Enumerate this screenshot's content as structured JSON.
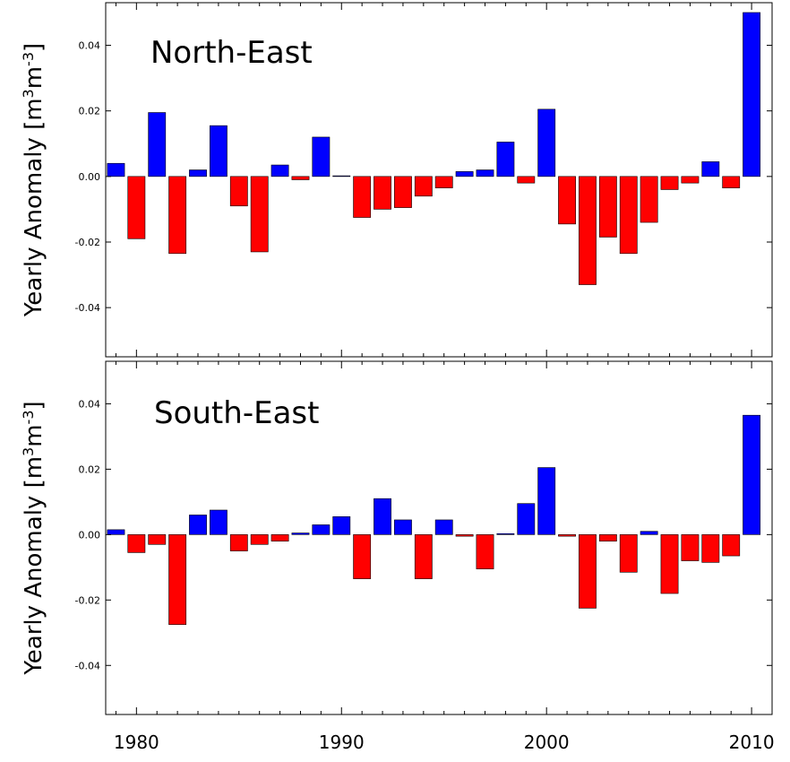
{
  "chart_data": [
    {
      "type": "bar",
      "title": "North-East",
      "ylabel": "Yearly  Anomaly [m3m-3]",
      "ylabel_parts": {
        "main": "Yearly  Anomaly [m",
        "sup1": "3",
        "mid": "m",
        "sup2": "-3",
        "end": "]"
      },
      "ylim": [
        -0.055,
        0.053
      ],
      "yticks": [
        -0.04,
        -0.02,
        0.0,
        0.02,
        0.04
      ],
      "ytick_labels": [
        "-0.04",
        "-0.02",
        "0.00",
        "0.02",
        "0.04"
      ],
      "grid": false,
      "positive_color": "#0000ff",
      "negative_color": "#ff0000",
      "x": [
        1979,
        1980,
        1981,
        1982,
        1983,
        1984,
        1985,
        1986,
        1987,
        1988,
        1989,
        1990,
        1991,
        1992,
        1993,
        1994,
        1995,
        1996,
        1997,
        1998,
        1999,
        2000,
        2001,
        2002,
        2003,
        2004,
        2005,
        2006,
        2007,
        2008,
        2009,
        2010
      ],
      "values": [
        0.004,
        -0.019,
        0.0195,
        -0.0235,
        0.002,
        0.0155,
        -0.009,
        -0.023,
        0.0035,
        -0.001,
        0.012,
        0.0002,
        -0.0125,
        -0.01,
        -0.0095,
        -0.006,
        -0.0035,
        0.0015,
        0.002,
        0.0105,
        -0.002,
        0.0205,
        -0.0145,
        -0.033,
        -0.0185,
        -0.0235,
        -0.014,
        -0.004,
        -0.002,
        0.0045,
        -0.0035,
        0.05
      ]
    },
    {
      "type": "bar",
      "title": "South-East",
      "ylabel": "Yearly  Anomaly [m3m-3]",
      "ylabel_parts": {
        "main": "Yearly  Anomaly [m",
        "sup1": "3",
        "mid": "m",
        "sup2": "-3",
        "end": "]"
      },
      "ylim": [
        -0.055,
        0.053
      ],
      "yticks": [
        -0.04,
        -0.02,
        0.0,
        0.02,
        0.04
      ],
      "ytick_labels": [
        "-0.04",
        "-0.02",
        "0.00",
        "0.02",
        "0.04"
      ],
      "grid": false,
      "positive_color": "#0000ff",
      "negative_color": "#ff0000",
      "x": [
        1979,
        1980,
        1981,
        1982,
        1983,
        1984,
        1985,
        1986,
        1987,
        1988,
        1989,
        1990,
        1991,
        1992,
        1993,
        1994,
        1995,
        1996,
        1997,
        1998,
        1999,
        2000,
        2001,
        2002,
        2003,
        2004,
        2005,
        2006,
        2007,
        2008,
        2009,
        2010
      ],
      "values": [
        0.0015,
        -0.0055,
        -0.003,
        -0.0275,
        0.006,
        0.0075,
        -0.005,
        -0.003,
        -0.002,
        0.0005,
        0.003,
        0.0055,
        -0.0135,
        0.011,
        0.0045,
        -0.0135,
        0.0045,
        -0.0005,
        -0.0105,
        0.0003,
        0.0095,
        0.0205,
        -0.0005,
        -0.0225,
        -0.002,
        -0.0115,
        0.001,
        -0.018,
        -0.008,
        -0.0085,
        -0.0065,
        0.0365
      ]
    }
  ],
  "xaxis": {
    "xlim": [
      1978.5,
      2011.0
    ],
    "ticks": [
      1980,
      1990,
      2000,
      2010
    ],
    "tick_labels": [
      "1980",
      "1990",
      "2000",
      "2010"
    ]
  }
}
